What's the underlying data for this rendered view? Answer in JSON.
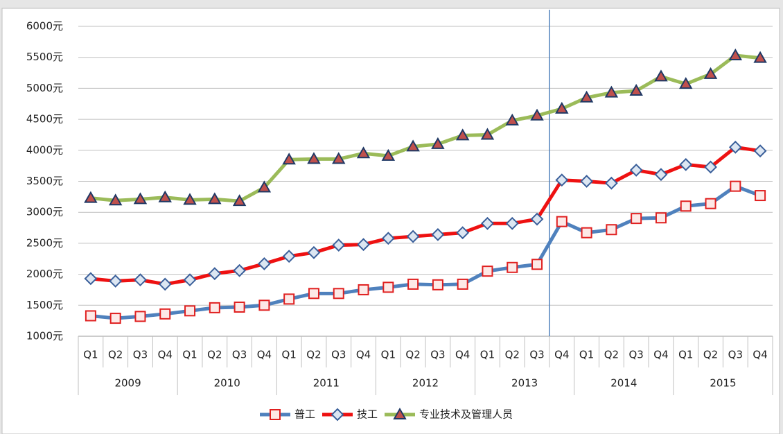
{
  "chart_data": {
    "type": "line",
    "categories": [
      "Q1",
      "Q2",
      "Q3",
      "Q4",
      "Q1",
      "Q2",
      "Q3",
      "Q4",
      "Q1",
      "Q2",
      "Q3",
      "Q4",
      "Q1",
      "Q2",
      "Q3",
      "Q4",
      "Q1",
      "Q2",
      "Q3",
      "Q4",
      "Q1",
      "Q2",
      "Q3",
      "Q4",
      "Q1",
      "Q2",
      "Q3",
      "Q4"
    ],
    "years": [
      "2009",
      "2010",
      "2011",
      "2012",
      "2013",
      "2014",
      "2015"
    ],
    "divider_at": 19,
    "series": [
      {
        "name": "普工",
        "color": "#4f81bd",
        "marker": "square",
        "marker_stroke": "#e02020",
        "marker_fill": "#fde9e7",
        "values": [
          1330,
          1290,
          1320,
          1360,
          1410,
          1460,
          1470,
          1500,
          1600,
          1690,
          1690,
          1750,
          1790,
          1840,
          1830,
          1840,
          2050,
          2110,
          2160,
          2850,
          2670,
          2720,
          2900,
          2910,
          3100,
          3140,
          3420,
          3270
        ]
      },
      {
        "name": "技工",
        "color": "#ee1111",
        "marker": "diamond",
        "marker_stroke": "#3a5f9a",
        "marker_fill": "#dce6f2",
        "values": [
          1930,
          1890,
          1910,
          1840,
          1910,
          2010,
          2060,
          2170,
          2290,
          2350,
          2470,
          2480,
          2580,
          2610,
          2640,
          2670,
          2820,
          2820,
          2890,
          3520,
          3500,
          3470,
          3680,
          3610,
          3770,
          3730,
          4050,
          3990
        ]
      },
      {
        "name": "专业技术及管理人员",
        "color": "#9bbb59",
        "marker": "triangle",
        "marker_stroke": "#1f3864",
        "marker_fill": "#c0504d",
        "values": [
          3230,
          3190,
          3210,
          3240,
          3200,
          3210,
          3180,
          3400,
          3850,
          3860,
          3860,
          3950,
          3910,
          4060,
          4100,
          4240,
          4250,
          4480,
          4560,
          4670,
          4850,
          4930,
          4960,
          5190,
          5070,
          5230,
          5530,
          5490
        ]
      }
    ],
    "ylim": [
      1000,
      6000
    ],
    "yticks": [
      {
        "value": 1000,
        "label": "1000元"
      },
      {
        "value": 1500,
        "label": "1500元"
      },
      {
        "value": 2000,
        "label": "2000元"
      },
      {
        "value": 2500,
        "label": "2500元"
      },
      {
        "value": 3000,
        "label": "3000元"
      },
      {
        "value": 3500,
        "label": "3500元"
      },
      {
        "value": 4000,
        "label": "4000元"
      },
      {
        "value": 4500,
        "label": "4500元"
      },
      {
        "value": 5000,
        "label": "5000元"
      },
      {
        "value": 5500,
        "label": "5500元"
      },
      {
        "value": 6000,
        "label": "6000元"
      }
    ],
    "grid": true,
    "legend": "bottom"
  }
}
